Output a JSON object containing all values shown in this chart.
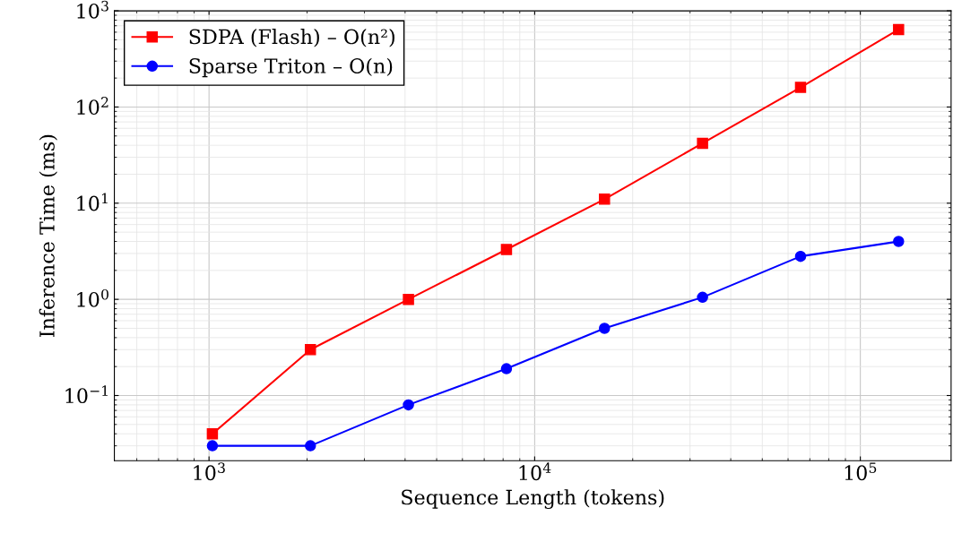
{
  "chart_data": {
    "type": "line",
    "xlabel": "Sequence Length (tokens)",
    "ylabel": "Inference Time (ms)",
    "log": "xy",
    "grid": true,
    "legend": "top left",
    "line_style": "solid",
    "xlim": [
      512,
      190000
    ],
    "ylim": [
      0.021,
      1000
    ],
    "xticks": [
      {
        "value": 1000,
        "label": "10$^{3}$"
      },
      {
        "value": 10000,
        "label": "10$^{4}$"
      },
      {
        "value": 100000,
        "label": "10$^{5}$"
      }
    ],
    "yticks": [
      {
        "value": 0.1,
        "label": "10$^{−1}$"
      },
      {
        "value": 1,
        "label": "10$^{0}$"
      },
      {
        "value": 10,
        "label": "10$^{1}$"
      },
      {
        "value": 100,
        "label": "10$^{2}$"
      },
      {
        "value": 1000,
        "label": "10$^{3}$"
      }
    ],
    "x": [
      1024,
      2048,
      4096,
      8192,
      16384,
      32768,
      65536,
      131072
    ],
    "series": [
      {
        "name": "SDPA (Flash) – O(n²)",
        "color": "#ff0000",
        "marker": "square",
        "values": [
          0.04,
          0.3,
          1.0,
          3.3,
          11,
          42,
          160,
          640
        ]
      },
      {
        "name": "Sparse Triton – O(n)",
        "color": "#0000ff",
        "marker": "circle",
        "values": [
          0.03,
          0.03,
          0.08,
          0.19,
          0.5,
          1.05,
          2.8,
          4.0
        ]
      }
    ]
  }
}
